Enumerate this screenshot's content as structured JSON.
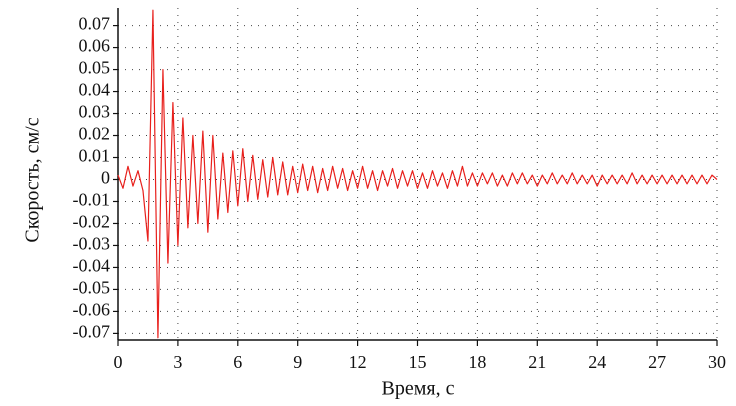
{
  "chart_data": {
    "type": "line",
    "y_label": "Скорость, см/с",
    "x_label": "Время, с",
    "color": "#e8201c",
    "grid": true,
    "xlim": [
      0,
      30
    ],
    "ylim": [
      -0.073,
      0.078
    ],
    "xticks": [
      0,
      3,
      6,
      9,
      12,
      15,
      18,
      21,
      24,
      27,
      30
    ],
    "yticks": [
      0.07,
      0.06,
      0.05,
      0.04,
      0.03,
      0.02,
      0.01,
      0,
      -0.01,
      -0.02,
      -0.03,
      -0.04,
      -0.05,
      -0.06,
      -0.07
    ],
    "x": [
      0,
      0.25,
      0.5,
      0.75,
      1,
      1.25,
      1.5,
      1.75,
      2,
      2.25,
      2.5,
      2.75,
      3,
      3.25,
      3.5,
      3.75,
      4,
      4.25,
      4.5,
      4.75,
      5,
      5.25,
      5.5,
      5.75,
      6,
      6.25,
      6.5,
      6.75,
      7,
      7.25,
      7.5,
      7.75,
      8,
      8.25,
      8.5,
      8.75,
      9,
      9.25,
      9.5,
      9.75,
      10,
      10.25,
      10.5,
      10.75,
      11,
      11.25,
      11.5,
      11.75,
      12,
      12.25,
      12.5,
      12.75,
      13,
      13.25,
      13.5,
      13.75,
      14,
      14.25,
      14.5,
      14.75,
      15,
      15.25,
      15.5,
      15.75,
      16,
      16.25,
      16.5,
      16.75,
      17,
      17.25,
      17.5,
      17.75,
      18,
      18.25,
      18.5,
      18.75,
      19,
      19.25,
      19.5,
      19.75,
      20,
      20.25,
      20.5,
      20.75,
      21,
      21.25,
      21.5,
      21.75,
      22,
      22.25,
      22.5,
      22.75,
      23,
      23.25,
      23.5,
      23.75,
      24,
      24.25,
      24.5,
      24.75,
      25,
      25.25,
      25.5,
      25.75,
      26,
      26.25,
      26.5,
      26.75,
      27,
      27.25,
      27.5,
      27.75,
      28,
      28.25,
      28.5,
      28.75,
      29,
      29.25,
      29.5,
      29.75,
      30
    ],
    "values": [
      0.002,
      -0.004,
      0.006,
      -0.003,
      0.004,
      -0.005,
      -0.028,
      0.077,
      -0.072,
      0.05,
      -0.038,
      0.035,
      -0.03,
      0.028,
      -0.022,
      0.02,
      -0.02,
      0.022,
      -0.024,
      0.02,
      -0.018,
      0.012,
      -0.015,
      0.013,
      -0.012,
      0.014,
      -0.01,
      0.011,
      -0.009,
      0.009,
      -0.008,
      0.01,
      -0.007,
      0.008,
      -0.007,
      0.006,
      -0.006,
      0.007,
      -0.005,
      0.006,
      -0.006,
      0.005,
      -0.005,
      0.006,
      -0.004,
      0.005,
      -0.005,
      0.004,
      -0.004,
      0.006,
      -0.004,
      0.004,
      -0.005,
      0.004,
      -0.003,
      0.005,
      -0.004,
      0.004,
      -0.003,
      0.004,
      -0.004,
      0.003,
      -0.004,
      0.004,
      -0.003,
      0.003,
      -0.004,
      0.004,
      -0.003,
      0.006,
      -0.003,
      0.003,
      -0.003,
      0.003,
      -0.002,
      0.003,
      -0.003,
      0.002,
      -0.003,
      0.003,
      -0.002,
      0.003,
      -0.002,
      0.002,
      -0.003,
      0.002,
      -0.002,
      0.003,
      -0.002,
      0.002,
      -0.002,
      0.003,
      -0.002,
      0.002,
      -0.002,
      0.002,
      -0.003,
      0.002,
      -0.002,
      0.002,
      -0.002,
      0.002,
      -0.002,
      0.003,
      -0.002,
      0.002,
      -0.002,
      0.002,
      -0.002,
      0.002,
      -0.002,
      0.002,
      -0.002,
      0.002,
      -0.002,
      0.002,
      -0.002,
      0.002,
      -0.002,
      0.002,
      0
    ]
  }
}
